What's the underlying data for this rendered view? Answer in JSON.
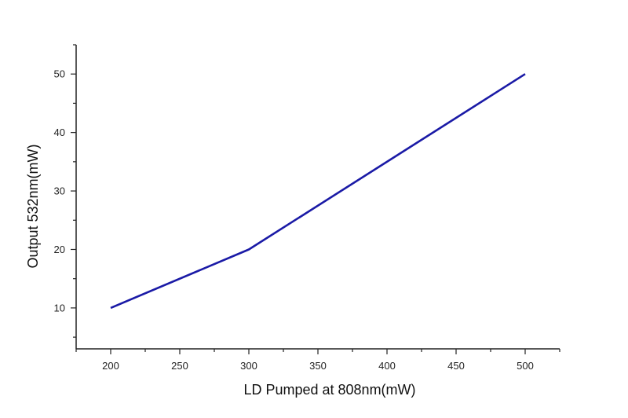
{
  "chart_data": {
    "type": "line",
    "title": "",
    "xlabel": "LD Pumped at 808nm(mW)",
    "ylabel": "Output 532nm(mW)",
    "xlim": [
      175,
      525
    ],
    "ylim": [
      3,
      55
    ],
    "xticks": [
      200,
      250,
      300,
      350,
      400,
      450,
      500
    ],
    "yticks": [
      10,
      20,
      30,
      40,
      50
    ],
    "grid": false,
    "legend": "none",
    "series": [
      {
        "x": [
          200,
          300,
          500
        ],
        "y": [
          10,
          20,
          50
        ],
        "color": "#1a1aa6"
      }
    ]
  }
}
